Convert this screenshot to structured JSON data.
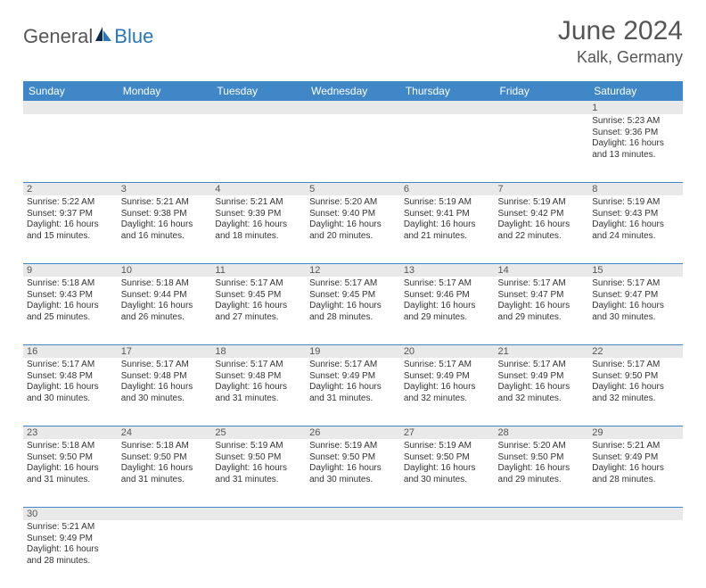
{
  "brand": {
    "part1": "General",
    "part2": "Blue"
  },
  "title": "June 2024",
  "location": "Kalk, Germany",
  "colors": {
    "header_bg": "#3f87c7",
    "header_text": "#ffffff",
    "daynum_bg": "#e9e9e9",
    "border": "#3f87c7",
    "text": "#333333",
    "title_color": "#555555",
    "brand_gray": "#555555",
    "brand_blue": "#2a76b8",
    "logo_dark": "#0a2a52",
    "logo_light": "#2a76b8"
  },
  "day_names": [
    "Sunday",
    "Monday",
    "Tuesday",
    "Wednesday",
    "Thursday",
    "Friday",
    "Saturday"
  ],
  "weeks": [
    [
      null,
      null,
      null,
      null,
      null,
      null,
      {
        "n": "1",
        "sr": "5:23 AM",
        "ss": "9:36 PM",
        "dl": "16 hours and 13 minutes."
      }
    ],
    [
      {
        "n": "2",
        "sr": "5:22 AM",
        "ss": "9:37 PM",
        "dl": "16 hours and 15 minutes."
      },
      {
        "n": "3",
        "sr": "5:21 AM",
        "ss": "9:38 PM",
        "dl": "16 hours and 16 minutes."
      },
      {
        "n": "4",
        "sr": "5:21 AM",
        "ss": "9:39 PM",
        "dl": "16 hours and 18 minutes."
      },
      {
        "n": "5",
        "sr": "5:20 AM",
        "ss": "9:40 PM",
        "dl": "16 hours and 20 minutes."
      },
      {
        "n": "6",
        "sr": "5:19 AM",
        "ss": "9:41 PM",
        "dl": "16 hours and 21 minutes."
      },
      {
        "n": "7",
        "sr": "5:19 AM",
        "ss": "9:42 PM",
        "dl": "16 hours and 22 minutes."
      },
      {
        "n": "8",
        "sr": "5:19 AM",
        "ss": "9:43 PM",
        "dl": "16 hours and 24 minutes."
      }
    ],
    [
      {
        "n": "9",
        "sr": "5:18 AM",
        "ss": "9:43 PM",
        "dl": "16 hours and 25 minutes."
      },
      {
        "n": "10",
        "sr": "5:18 AM",
        "ss": "9:44 PM",
        "dl": "16 hours and 26 minutes."
      },
      {
        "n": "11",
        "sr": "5:17 AM",
        "ss": "9:45 PM",
        "dl": "16 hours and 27 minutes."
      },
      {
        "n": "12",
        "sr": "5:17 AM",
        "ss": "9:45 PM",
        "dl": "16 hours and 28 minutes."
      },
      {
        "n": "13",
        "sr": "5:17 AM",
        "ss": "9:46 PM",
        "dl": "16 hours and 29 minutes."
      },
      {
        "n": "14",
        "sr": "5:17 AM",
        "ss": "9:47 PM",
        "dl": "16 hours and 29 minutes."
      },
      {
        "n": "15",
        "sr": "5:17 AM",
        "ss": "9:47 PM",
        "dl": "16 hours and 30 minutes."
      }
    ],
    [
      {
        "n": "16",
        "sr": "5:17 AM",
        "ss": "9:48 PM",
        "dl": "16 hours and 30 minutes."
      },
      {
        "n": "17",
        "sr": "5:17 AM",
        "ss": "9:48 PM",
        "dl": "16 hours and 30 minutes."
      },
      {
        "n": "18",
        "sr": "5:17 AM",
        "ss": "9:48 PM",
        "dl": "16 hours and 31 minutes."
      },
      {
        "n": "19",
        "sr": "5:17 AM",
        "ss": "9:49 PM",
        "dl": "16 hours and 31 minutes."
      },
      {
        "n": "20",
        "sr": "5:17 AM",
        "ss": "9:49 PM",
        "dl": "16 hours and 32 minutes."
      },
      {
        "n": "21",
        "sr": "5:17 AM",
        "ss": "9:49 PM",
        "dl": "16 hours and 32 minutes."
      },
      {
        "n": "22",
        "sr": "5:17 AM",
        "ss": "9:50 PM",
        "dl": "16 hours and 32 minutes."
      }
    ],
    [
      {
        "n": "23",
        "sr": "5:18 AM",
        "ss": "9:50 PM",
        "dl": "16 hours and 31 minutes."
      },
      {
        "n": "24",
        "sr": "5:18 AM",
        "ss": "9:50 PM",
        "dl": "16 hours and 31 minutes."
      },
      {
        "n": "25",
        "sr": "5:19 AM",
        "ss": "9:50 PM",
        "dl": "16 hours and 31 minutes."
      },
      {
        "n": "26",
        "sr": "5:19 AM",
        "ss": "9:50 PM",
        "dl": "16 hours and 30 minutes."
      },
      {
        "n": "27",
        "sr": "5:19 AM",
        "ss": "9:50 PM",
        "dl": "16 hours and 30 minutes."
      },
      {
        "n": "28",
        "sr": "5:20 AM",
        "ss": "9:50 PM",
        "dl": "16 hours and 29 minutes."
      },
      {
        "n": "29",
        "sr": "5:21 AM",
        "ss": "9:49 PM",
        "dl": "16 hours and 28 minutes."
      }
    ],
    [
      {
        "n": "30",
        "sr": "5:21 AM",
        "ss": "9:49 PM",
        "dl": "16 hours and 28 minutes."
      },
      null,
      null,
      null,
      null,
      null,
      null
    ]
  ],
  "labels": {
    "sunrise": "Sunrise:",
    "sunset": "Sunset:",
    "daylight": "Daylight:"
  }
}
